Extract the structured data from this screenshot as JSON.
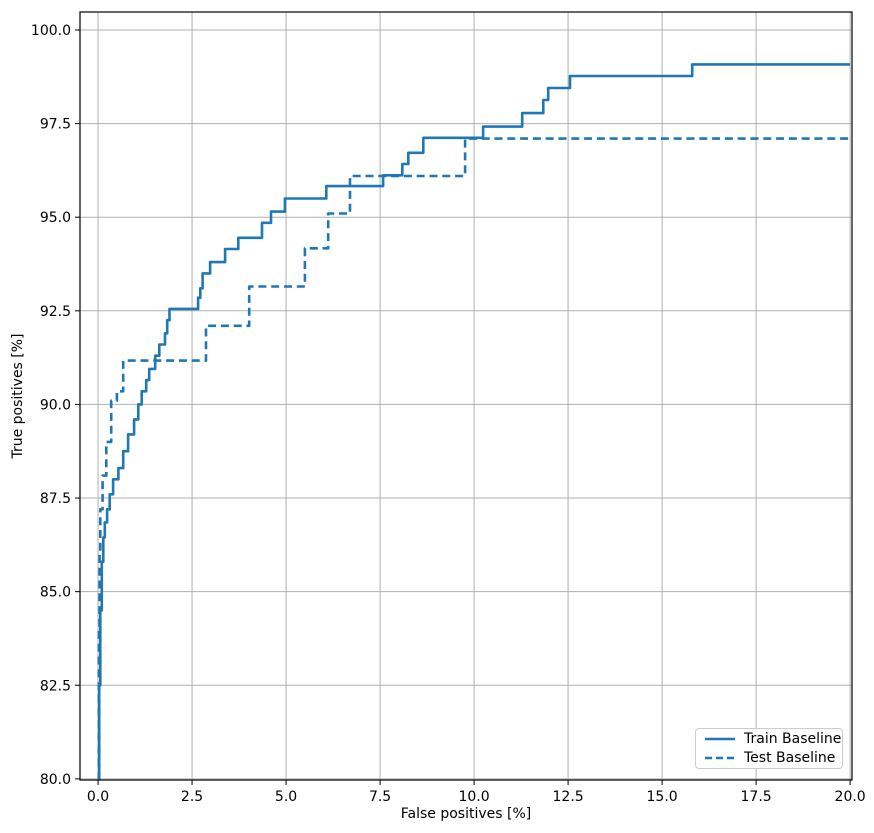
{
  "chart_data": {
    "type": "line",
    "subtype": "step-post",
    "title": "",
    "xlabel": "False positives [%]",
    "ylabel": "True positives [%]",
    "xlim": [
      -0.48,
      20.05
    ],
    "ylim": [
      79.97,
      100.48
    ],
    "grid": true,
    "legend_position": "lower right",
    "colors": {
      "line": "#1f77b4",
      "grid": "#b0b0b0",
      "spine": "#000000",
      "background": "#ffffff"
    },
    "x_ticks": {
      "values": [
        0,
        2.5,
        5,
        7.5,
        10,
        12.5,
        15,
        17.5,
        20
      ],
      "labels": [
        "0.0",
        "2.5",
        "5.0",
        "7.5",
        "10.0",
        "12.5",
        "15.0",
        "17.5",
        "20.0"
      ]
    },
    "y_ticks": {
      "values": [
        80,
        82.5,
        85,
        87.5,
        90,
        92.5,
        95,
        97.5,
        100
      ],
      "labels": [
        "80.0",
        "82.5",
        "85.0",
        "87.5",
        "90.0",
        "92.5",
        "95.0",
        "97.5",
        "100.0"
      ]
    },
    "series": [
      {
        "name": "Train Baseline",
        "style": "solid",
        "color": "#1f77b4",
        "points": [
          [
            0.0,
            80.0
          ],
          [
            0.03,
            82.5
          ],
          [
            0.06,
            84.5
          ],
          [
            0.1,
            85.8
          ],
          [
            0.14,
            86.45
          ],
          [
            0.18,
            86.85
          ],
          [
            0.24,
            87.2
          ],
          [
            0.31,
            87.6
          ],
          [
            0.4,
            88.0
          ],
          [
            0.54,
            88.3
          ],
          [
            0.67,
            88.75
          ],
          [
            0.8,
            89.2
          ],
          [
            0.96,
            89.6
          ],
          [
            1.07,
            90.0
          ],
          [
            1.16,
            90.35
          ],
          [
            1.28,
            90.65
          ],
          [
            1.36,
            90.95
          ],
          [
            1.52,
            91.3
          ],
          [
            1.63,
            91.6
          ],
          [
            1.78,
            91.9
          ],
          [
            1.84,
            92.25
          ],
          [
            1.9,
            92.55
          ],
          [
            2.66,
            92.85
          ],
          [
            2.72,
            93.1
          ],
          [
            2.78,
            93.5
          ],
          [
            2.98,
            93.8
          ],
          [
            3.38,
            94.15
          ],
          [
            3.73,
            94.45
          ],
          [
            4.36,
            94.85
          ],
          [
            4.6,
            95.15
          ],
          [
            4.97,
            95.5
          ],
          [
            6.07,
            95.83
          ],
          [
            7.58,
            96.12
          ],
          [
            8.09,
            96.42
          ],
          [
            8.25,
            96.72
          ],
          [
            8.65,
            97.12
          ],
          [
            10.24,
            97.42
          ],
          [
            11.28,
            97.78
          ],
          [
            11.84,
            98.13
          ],
          [
            11.97,
            98.45
          ],
          [
            12.55,
            98.77
          ],
          [
            15.8,
            99.08
          ],
          [
            20.0,
            99.08
          ]
        ]
      },
      {
        "name": "Test Baseline",
        "style": "dashed",
        "color": "#1f77b4",
        "points": [
          [
            0.0,
            80.0
          ],
          [
            0.02,
            84.0
          ],
          [
            0.04,
            86.0
          ],
          [
            0.06,
            87.2
          ],
          [
            0.12,
            88.1
          ],
          [
            0.22,
            89.0
          ],
          [
            0.35,
            90.1
          ],
          [
            0.5,
            90.35
          ],
          [
            0.67,
            91.17
          ],
          [
            2.87,
            92.1
          ],
          [
            4.02,
            93.15
          ],
          [
            5.5,
            94.17
          ],
          [
            6.12,
            95.1
          ],
          [
            6.7,
            96.1
          ],
          [
            9.76,
            97.1
          ],
          [
            20.0,
            97.1
          ]
        ]
      }
    ]
  }
}
